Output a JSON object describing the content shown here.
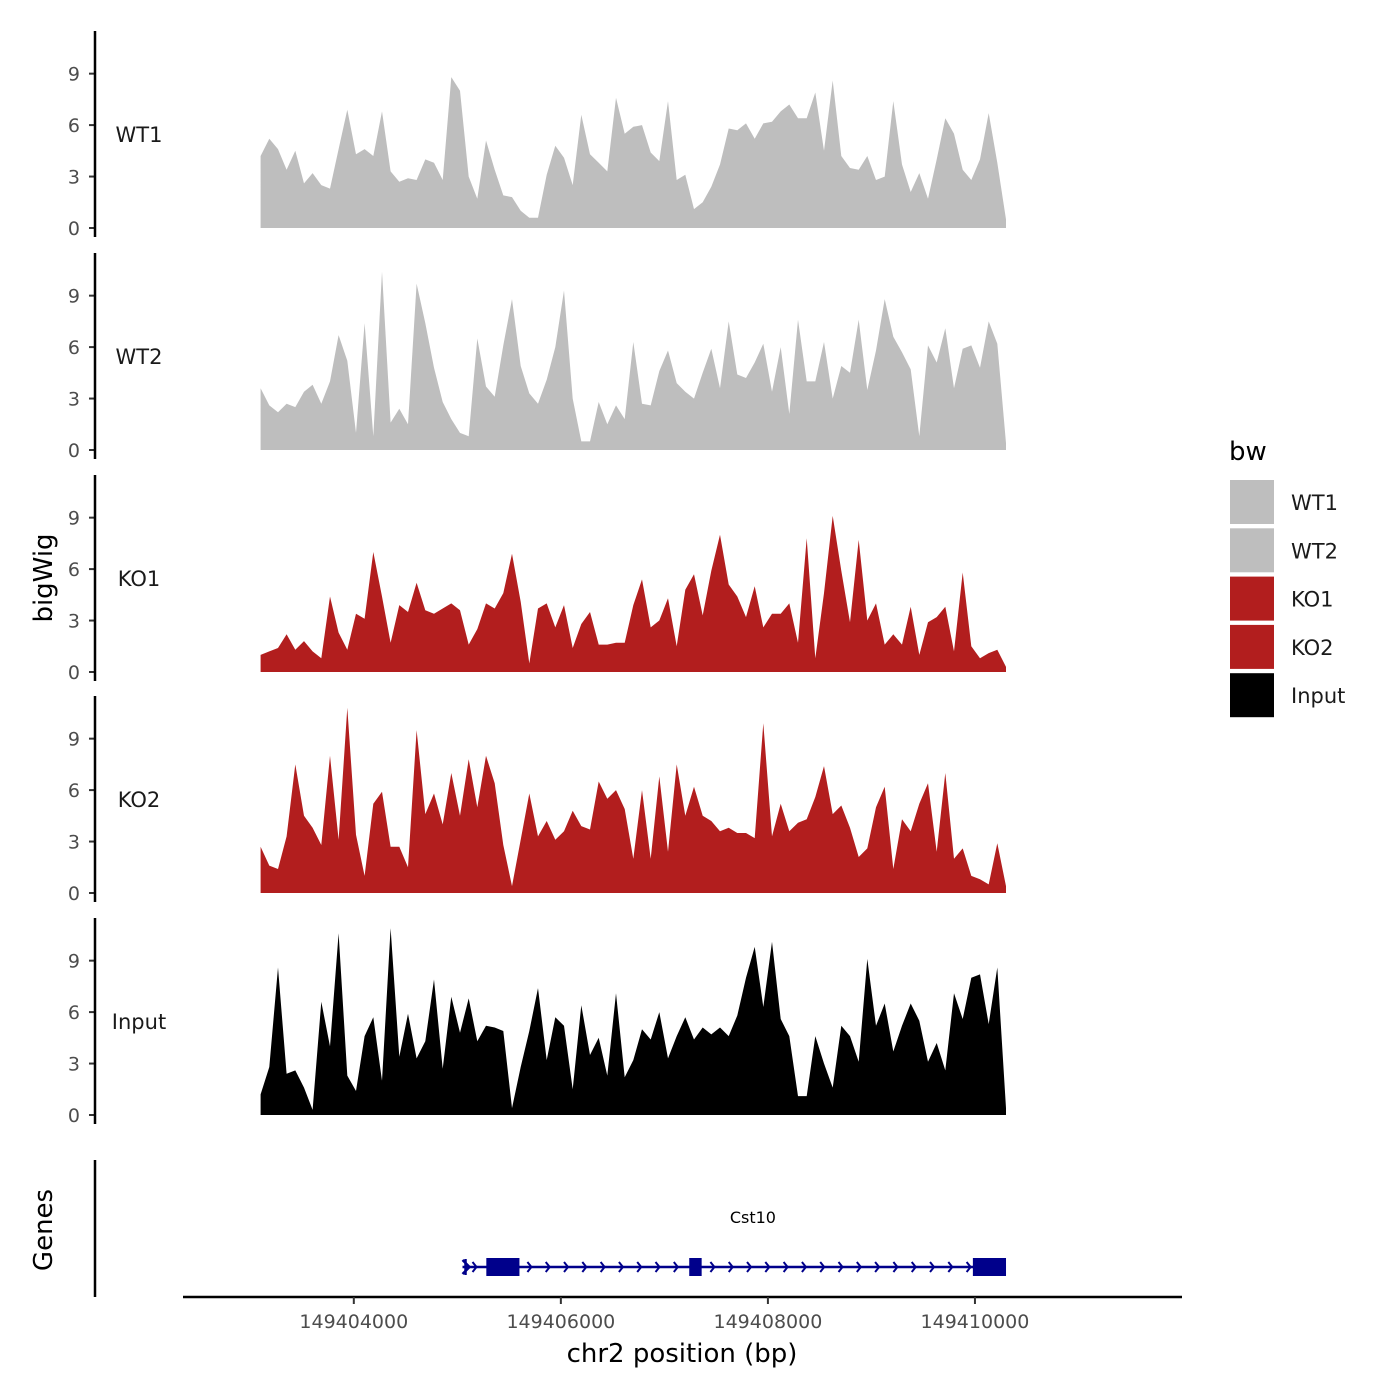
{
  "chart_data": {
    "type": "area",
    "title": "",
    "xlabel": "chr2 position (bp)",
    "ylabel": "bigWig",
    "gene_track_label": "Genes",
    "xlim": [
      149402350,
      149412000
    ],
    "data_xrange": [
      149403100,
      149410300
    ],
    "ylim": [
      0,
      11
    ],
    "yticks": [
      "0",
      "3",
      "6",
      "9"
    ],
    "xticks": [
      {
        "value": 149404000,
        "label": "149404000"
      },
      {
        "value": 149406000,
        "label": "149406000"
      },
      {
        "value": 149408000,
        "label": "149408000"
      },
      {
        "value": 149410000,
        "label": "149410000"
      }
    ],
    "legend": {
      "title": "bw",
      "position": "right",
      "items": [
        {
          "label": "WT1",
          "color": "#bebebe"
        },
        {
          "label": "WT2",
          "color": "#bebebe"
        },
        {
          "label": "KO1",
          "color": "#b21e1e"
        },
        {
          "label": "KO2",
          "color": "#b21e1e"
        },
        {
          "label": "Input",
          "color": "#000000"
        }
      ]
    },
    "series": [
      {
        "name": "WT1",
        "color": "#bebebe",
        "values": [
          4.2,
          5.2,
          4.6,
          3.4,
          4.5,
          2.6,
          3.2,
          2.5,
          2.3,
          4.6,
          6.9,
          4.3,
          4.6,
          4.2,
          6.8,
          3.3,
          2.7,
          2.9,
          2.8,
          4.0,
          3.8,
          2.8,
          8.8,
          8.0,
          3.0,
          1.7,
          5.1,
          3.4,
          1.9,
          1.8,
          1.0,
          0.6,
          0.6,
          3.1,
          4.8,
          4.1,
          2.5,
          6.6,
          4.3,
          3.8,
          3.3,
          7.6,
          5.5,
          5.9,
          6.0,
          4.4,
          3.9,
          7.4,
          2.8,
          3.1,
          1.1,
          1.5,
          2.4,
          3.7,
          5.8,
          5.7,
          6.1,
          5.2,
          6.1,
          6.2,
          6.8,
          7.2,
          6.4,
          6.4,
          7.9,
          4.5,
          8.6,
          4.2,
          3.5,
          3.4,
          4.2,
          2.8,
          3.0,
          7.4,
          3.7,
          2.1,
          3.2,
          1.7,
          4.0,
          6.4,
          5.5,
          3.4,
          2.8,
          4.0,
          6.7,
          3.8,
          0.5
        ]
      },
      {
        "name": "WT2",
        "color": "#bebebe",
        "values": [
          3.6,
          2.6,
          2.2,
          2.7,
          2.5,
          3.4,
          3.8,
          2.7,
          4.0,
          6.7,
          5.2,
          1.0,
          7.4,
          0.8,
          10.4,
          1.6,
          2.4,
          1.5,
          9.7,
          7.4,
          4.8,
          2.8,
          1.8,
          1.0,
          0.8,
          6.5,
          3.7,
          3.1,
          6.1,
          8.8,
          4.9,
          3.3,
          2.7,
          4.1,
          6.0,
          9.3,
          3.0,
          0.5,
          0.5,
          2.8,
          1.5,
          2.6,
          1.8,
          6.3,
          2.7,
          2.6,
          4.6,
          5.8,
          3.9,
          3.4,
          3.0,
          4.5,
          5.9,
          3.6,
          7.5,
          4.4,
          4.2,
          5.1,
          6.2,
          3.4,
          6.0,
          2.1,
          7.6,
          4.0,
          4.0,
          6.3,
          3.0,
          4.9,
          4.5,
          7.6,
          3.5,
          5.8,
          8.8,
          6.6,
          5.7,
          4.7,
          0.8,
          6.1,
          5.1,
          7.1,
          3.6,
          5.9,
          6.1,
          4.8,
          7.5,
          6.2,
          0.4
        ]
      },
      {
        "name": "KO1",
        "color": "#b21e1e",
        "values": [
          1.0,
          1.2,
          1.4,
          2.2,
          1.3,
          1.8,
          1.2,
          0.8,
          4.4,
          2.3,
          1.3,
          3.4,
          3.1,
          7.0,
          4.4,
          1.7,
          3.9,
          3.5,
          5.2,
          3.6,
          3.4,
          3.7,
          4.0,
          3.6,
          1.6,
          2.5,
          4.0,
          3.7,
          4.6,
          6.9,
          4.1,
          0.5,
          3.7,
          4.0,
          2.6,
          3.9,
          1.4,
          2.8,
          3.5,
          1.6,
          1.6,
          1.7,
          1.7,
          3.9,
          5.4,
          2.6,
          3.0,
          4.3,
          1.5,
          4.8,
          5.7,
          3.3,
          5.9,
          8.0,
          5.1,
          4.4,
          3.2,
          5.0,
          2.6,
          3.4,
          3.4,
          4.0,
          1.7,
          7.8,
          0.8,
          4.6,
          9.1,
          5.9,
          2.9,
          7.7,
          3.0,
          4.0,
          1.6,
          2.2,
          1.6,
          3.8,
          1.0,
          2.9,
          3.2,
          3.8,
          1.2,
          5.8,
          1.5,
          0.8,
          1.1,
          1.3,
          0.3
        ]
      },
      {
        "name": "KO2",
        "color": "#b21e1e",
        "values": [
          2.7,
          1.6,
          1.4,
          3.3,
          7.5,
          4.5,
          3.8,
          2.8,
          8.0,
          3.1,
          10.8,
          3.4,
          1.0,
          5.2,
          5.9,
          2.7,
          2.7,
          1.5,
          9.5,
          4.6,
          5.8,
          4.0,
          7.0,
          4.5,
          7.8,
          5.0,
          8.0,
          6.4,
          2.8,
          0.4,
          3.1,
          5.8,
          3.3,
          4.2,
          3.1,
          3.6,
          4.8,
          3.9,
          3.7,
          6.5,
          5.5,
          6.0,
          4.9,
          2.0,
          6.0,
          2.0,
          6.8,
          2.4,
          7.5,
          4.5,
          6.2,
          4.5,
          4.2,
          3.6,
          3.8,
          3.5,
          3.5,
          3.2,
          9.9,
          3.3,
          5.2,
          3.6,
          4.1,
          4.3,
          5.6,
          7.4,
          4.6,
          5.1,
          3.8,
          2.1,
          2.6,
          5.0,
          6.2,
          1.4,
          4.3,
          3.6,
          5.2,
          6.4,
          2.4,
          7.0,
          2.0,
          2.6,
          1.0,
          0.8,
          0.5,
          2.9,
          0.4
        ]
      },
      {
        "name": "Input",
        "color": "#000000",
        "values": [
          1.2,
          2.8,
          8.6,
          2.4,
          2.6,
          1.6,
          0.3,
          6.6,
          4.0,
          10.6,
          2.3,
          1.4,
          4.6,
          5.7,
          2.0,
          10.9,
          3.4,
          5.9,
          3.3,
          4.3,
          7.9,
          2.7,
          6.9,
          4.8,
          6.8,
          4.3,
          5.2,
          5.1,
          4.9,
          0.4,
          2.8,
          4.9,
          7.4,
          3.2,
          5.7,
          5.2,
          1.5,
          6.4,
          3.5,
          4.5,
          2.3,
          7.1,
          2.2,
          3.2,
          5.0,
          4.4,
          6.0,
          3.3,
          4.6,
          5.7,
          4.4,
          5.1,
          4.7,
          5.1,
          4.6,
          5.8,
          8.0,
          9.8,
          6.3,
          10.1,
          5.6,
          4.6,
          1.1,
          1.1,
          4.6,
          3.0,
          1.6,
          5.2,
          4.6,
          3.1,
          9.1,
          5.2,
          6.5,
          3.7,
          5.2,
          6.5,
          5.5,
          3.1,
          4.2,
          2.6,
          7.1,
          5.6,
          8.0,
          8.2,
          5.3,
          8.6,
          0.4
        ]
      }
    ],
    "genes": [
      {
        "name": "Cst10",
        "strand": "+",
        "start": 149405050,
        "end": 149410300,
        "exons": [
          [
            149405280,
            149405600
          ],
          [
            149407240,
            149407360
          ],
          [
            149409980,
            149410300
          ]
        ]
      }
    ]
  }
}
